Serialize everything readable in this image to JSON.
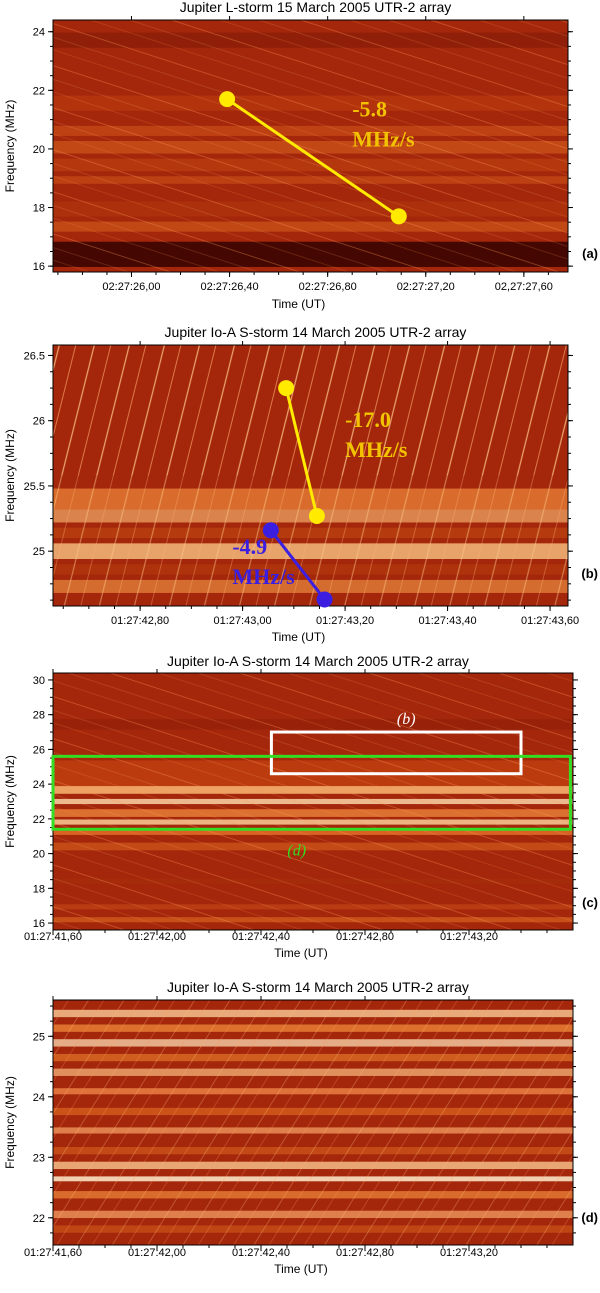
{
  "colors": {
    "yellow": "#ffea00",
    "yellow_text": "#f2c400",
    "blue": "#3b1fe0",
    "white_box": "#ffffff",
    "green_box": "#33dd22",
    "heat_dark": "#330000",
    "heat_mid": "#a4260b",
    "heat_bright": "#ffd49a"
  },
  "chart_data": [
    {
      "panel": "(a)",
      "type": "heatmap",
      "title": "Jupiter   L-storm   15 March 2005   UTR-2 array",
      "xlabel": "Time  (UT)",
      "ylabel": "Frequency  (MHz)",
      "x_ticks": [
        "02:27:26,00",
        "02:27:26,40",
        "02:27:26,80",
        "02:27:27,20",
        "02,27:27,60"
      ],
      "x_tick_values": [
        0.0,
        0.4,
        0.8,
        1.2,
        1.6
      ],
      "xlim": [
        -0.32,
        1.78
      ],
      "y_ticks": [
        "16",
        "18",
        "20",
        "22",
        "24"
      ],
      "y_tick_values": [
        16,
        18,
        20,
        22,
        24
      ],
      "ylim": [
        15.8,
        24.4
      ],
      "drift_lines": [
        {
          "color": "yellow",
          "x": [
            0.39,
            1.09
          ],
          "y": [
            21.7,
            17.7
          ]
        }
      ],
      "annotations": [
        {
          "lines": [
            "-5.8",
            "MHz/s"
          ],
          "color": "yellow",
          "x": 0.9,
          "y": 21.1
        }
      ],
      "boxes": []
    },
    {
      "panel": "(b)",
      "type": "heatmap",
      "title": "Jupiter   Io-A   S-storm   14 March 2005   UTR-2 array",
      "xlabel": "Time  (UT)",
      "ylabel": "Frequency  (MHz)",
      "x_ticks": [
        "01:27:42,80",
        "01:27:43,00",
        "01:27:43,20",
        "01:27:43,40",
        "01:27:43,60"
      ],
      "x_tick_values": [
        0.8,
        1.0,
        1.2,
        1.4,
        1.6
      ],
      "xlim": [
        0.63,
        1.635
      ],
      "y_ticks": [
        "25",
        "25.5",
        "26",
        "26.5"
      ],
      "y_tick_values": [
        25,
        25.5,
        26,
        26.5
      ],
      "ylim": [
        24.58,
        26.58
      ],
      "drift_lines": [
        {
          "color": "yellow",
          "x": [
            1.085,
            1.145
          ],
          "y": [
            26.25,
            25.27
          ]
        },
        {
          "color": "blue",
          "x": [
            1.055,
            1.16
          ],
          "y": [
            25.16,
            24.63
          ]
        }
      ],
      "annotations": [
        {
          "lines": [
            "-17.0",
            "MHz/s"
          ],
          "color": "yellow",
          "x": 1.2,
          "y": 25.95
        },
        {
          "lines": [
            "-4.9",
            "MHz/s"
          ],
          "color": "blue",
          "x": 0.98,
          "y": 24.98
        }
      ],
      "boxes": []
    },
    {
      "panel": "(c)",
      "type": "heatmap",
      "title": "Jupiter   Io-A   S-storm   14 March 2005   UTR-2 array",
      "xlabel": "Time  (UT)",
      "ylabel": "Frequency  (MHz)",
      "x_ticks": [
        "01:27:41,60",
        "01:27:42,00",
        "01:27:42,40",
        "01:27:42,80",
        "01:27:43,20"
      ],
      "x_tick_values": [
        0.0,
        0.4,
        0.8,
        1.2,
        1.6
      ],
      "xlim": [
        0.0,
        2.0
      ],
      "y_ticks": [
        "16",
        "18",
        "20",
        "22",
        "24",
        "26",
        "28",
        "30"
      ],
      "y_tick_values": [
        16,
        18,
        20,
        22,
        24,
        26,
        28,
        30
      ],
      "ylim": [
        15.6,
        30.4
      ],
      "drift_lines": [],
      "annotations": [],
      "boxes": [
        {
          "label": "(b)",
          "color": "white_box",
          "x": [
            0.84,
            1.8
          ],
          "y": [
            24.6,
            27.0
          ]
        },
        {
          "label": "(d)",
          "color": "green_box",
          "x": [
            0.0,
            1.99
          ],
          "y": [
            21.4,
            25.6
          ]
        }
      ]
    },
    {
      "panel": "(d)",
      "type": "heatmap",
      "title": "Jupiter   Io-A   S-storm   14 March 2005   UTR-2 array",
      "xlabel": "Time  (UT)",
      "ylabel": "Frequency  (MHz)",
      "x_ticks": [
        "01:27:41,60",
        "01:27:42,00",
        "01:27:42,40",
        "01:27:42,80",
        "01:27:43,20"
      ],
      "x_tick_values": [
        0.0,
        0.4,
        0.8,
        1.2,
        1.6
      ],
      "xlim": [
        0.0,
        2.0
      ],
      "y_ticks": [
        "22",
        "23",
        "24",
        "25"
      ],
      "y_tick_values": [
        22,
        23,
        24,
        25
      ],
      "ylim": [
        21.55,
        25.6
      ],
      "drift_lines": [],
      "annotations": [],
      "boxes": []
    }
  ]
}
